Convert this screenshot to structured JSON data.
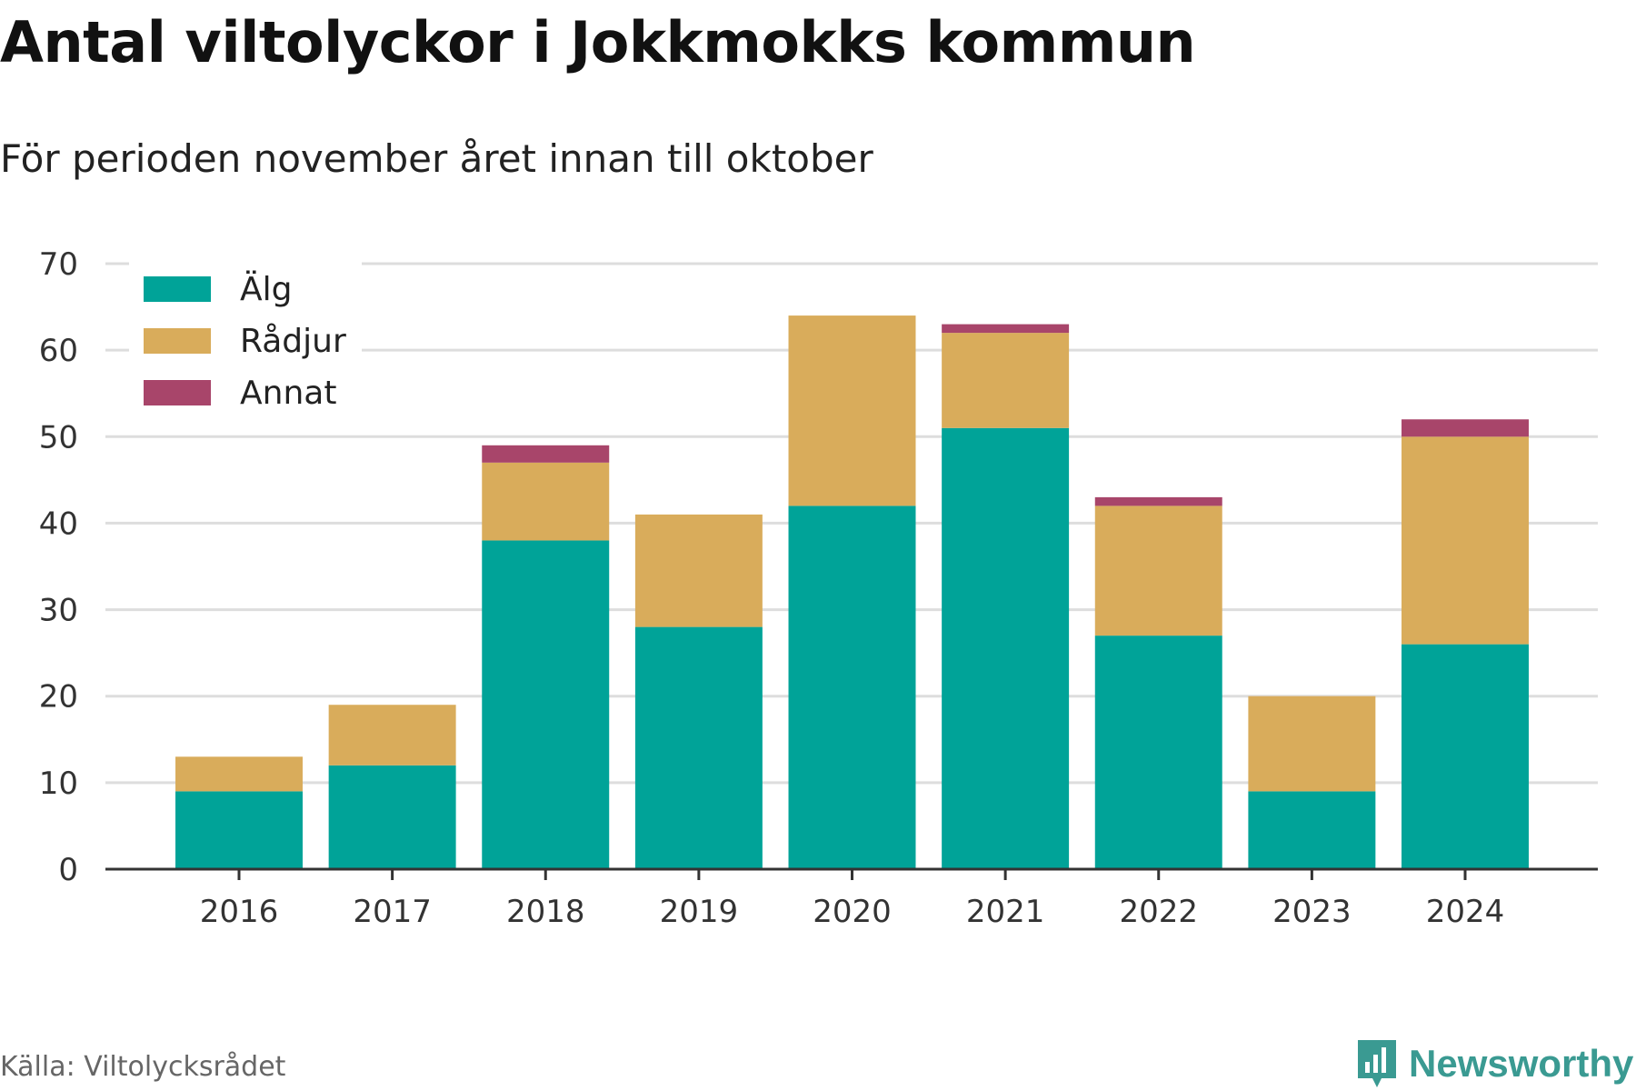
{
  "title": "Antal viltolyckor i Jokkmokks kommun",
  "subtitle": "För perioden november året innan till oktober",
  "source": "Källa: Viltolycksrådet",
  "brand": {
    "name": "Newsworthy",
    "icon": "newsworthy-logo-icon",
    "color": "#3a9a92"
  },
  "chart_data": {
    "type": "bar",
    "stacked": true,
    "categories": [
      "2016",
      "2017",
      "2018",
      "2019",
      "2020",
      "2021",
      "2022",
      "2023",
      "2024"
    ],
    "series": [
      {
        "name": "Älg",
        "color": "#00a398",
        "values": [
          9,
          12,
          38,
          28,
          42,
          51,
          27,
          9,
          26
        ]
      },
      {
        "name": "Rådjur",
        "color": "#d9ac5b",
        "values": [
          4,
          7,
          9,
          13,
          22,
          11,
          15,
          11,
          24
        ]
      },
      {
        "name": "Annat",
        "color": "#a8456a",
        "values": [
          0,
          0,
          2,
          0,
          0,
          1,
          1,
          0,
          2
        ]
      }
    ],
    "ylim": [
      0,
      70
    ],
    "yticks": [
      0,
      10,
      20,
      30,
      40,
      50,
      60,
      70
    ],
    "xlabel": "",
    "ylabel": "",
    "grid": true,
    "legend_position": "top-left"
  }
}
